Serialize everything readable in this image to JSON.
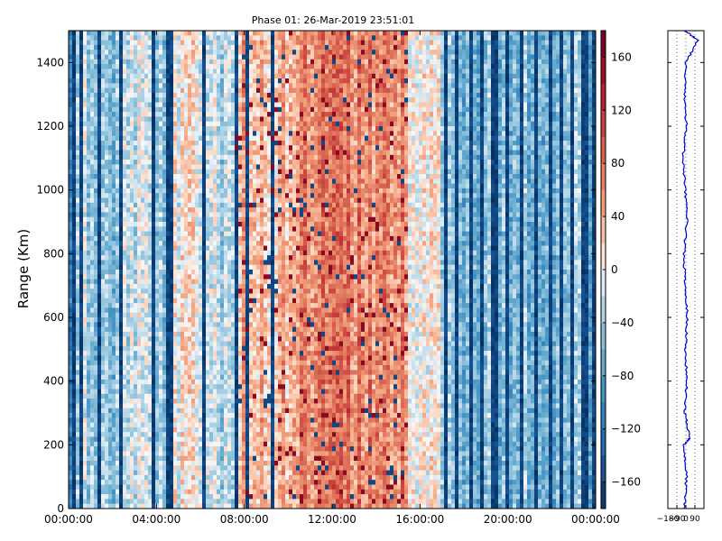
{
  "chart_data": [
    {
      "type": "heatmap",
      "title": "Phase 01: 26-Mar-2019 23:51:01",
      "xlabel": "",
      "ylabel": "Range (Km)",
      "x_ticks": [
        "00:00:00",
        "04:00:00",
        "08:00:00",
        "12:00:00",
        "16:00:00",
        "20:00:00",
        "00:00:00"
      ],
      "xlim_hours": [
        0,
        24
      ],
      "ylim": [
        0,
        1500
      ],
      "y_ticks": [
        0,
        200,
        400,
        600,
        800,
        1000,
        1200,
        1400
      ],
      "colorbar": {
        "colormap": "RdBu_r",
        "range": [
          -180,
          180
        ],
        "ticks": [
          -160,
          -120,
          -80,
          -40,
          0,
          40,
          80,
          120,
          160
        ],
        "low_color": "#053061",
        "mid_color": "#f7f7f7",
        "high_color": "#67001f"
      },
      "bands": [
        {
          "x": [
            0.0,
            0.4
          ],
          "mean": -120
        },
        {
          "x": [
            0.4,
            1.6
          ],
          "mean": -35
        },
        {
          "x": [
            1.6,
            2.3
          ],
          "mean": -60
        },
        {
          "x": [
            2.3,
            3.8
          ],
          "mean": -20
        },
        {
          "x": [
            3.8,
            4.5
          ],
          "mean": -45
        },
        {
          "x": [
            4.5,
            6.0
          ],
          "mean": 5
        },
        {
          "x": [
            6.0,
            7.5
          ],
          "mean": -25
        },
        {
          "x": [
            7.5,
            10.5
          ],
          "mean": 40
        },
        {
          "x": [
            10.5,
            15.5
          ],
          "mean": 65
        },
        {
          "x": [
            15.5,
            17.0
          ],
          "mean": 15
        },
        {
          "x": [
            17.0,
            24.0
          ],
          "mean": -55
        }
      ],
      "dark_blue_hours": [
        0.3,
        0.6,
        1.4,
        2.4,
        3.9,
        4.6,
        6.2,
        7.7,
        8.1,
        9.3,
        17.2,
        17.6,
        18.3,
        18.8,
        19.4,
        19.9,
        20.6,
        21.3,
        21.9,
        22.4,
        23.0,
        23.5,
        23.9
      ]
    },
    {
      "type": "line",
      "x_ticks": [
        -180,
        -90,
        0,
        90
      ],
      "xlim": [
        -180,
        180
      ],
      "ylim": [
        0,
        1500
      ],
      "series": [
        {
          "color": "#0000cc",
          "y": [
            0,
            100,
            200,
            220,
            300,
            400,
            500,
            600,
            700,
            800,
            900,
            1000,
            1100,
            1200,
            1300,
            1400,
            1470,
            1500
          ],
          "x": [
            -15,
            5,
            -20,
            40,
            -10,
            10,
            -5,
            15,
            -10,
            -20,
            10,
            -5,
            -30,
            5,
            -15,
            0,
            120,
            -10
          ]
        }
      ]
    }
  ]
}
